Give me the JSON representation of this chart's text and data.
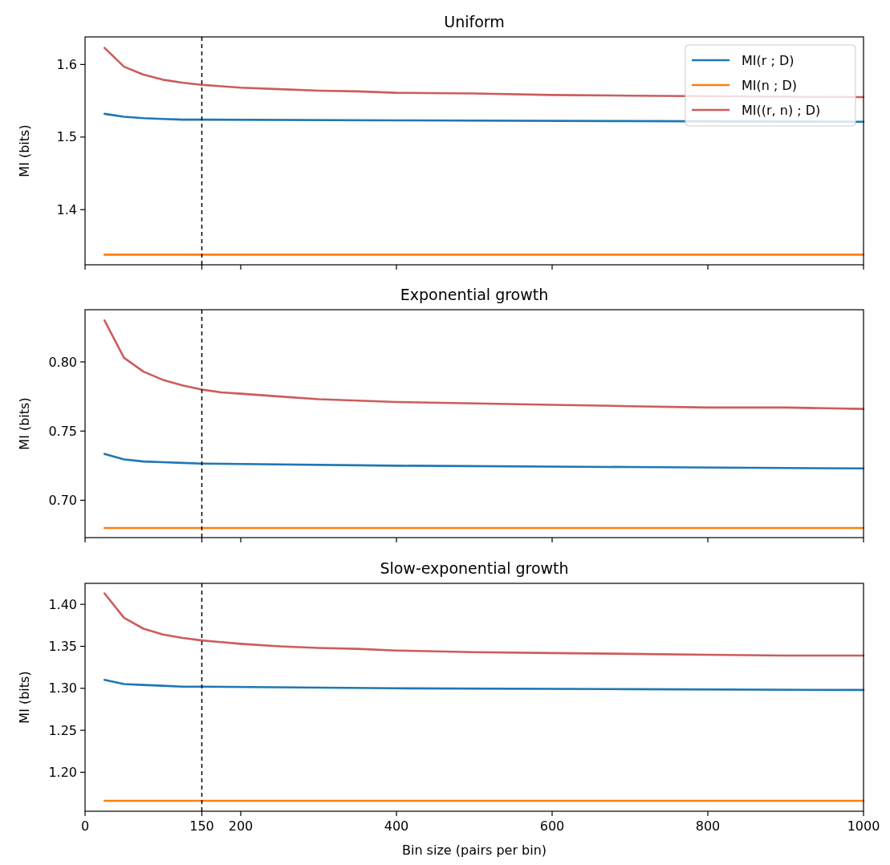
{
  "chart_data": [
    {
      "type": "line",
      "title": "Uniform",
      "ylabel": "MI (bits)",
      "xlim": [
        0,
        1000
      ],
      "xticks": [
        0,
        150,
        200,
        400,
        600,
        800,
        1000
      ],
      "ylim": [
        1.324,
        1.638
      ],
      "yticks": [
        1.4,
        1.5,
        1.6
      ],
      "tick_labels": "y",
      "legend": "top right",
      "grid": false,
      "ref_lines": [
        {
          "axis": "x",
          "value": 150,
          "color": "#000000",
          "line_style": "dashed"
        }
      ],
      "series": [
        {
          "name": "MI(r ; D)",
          "color": "#1f77b4",
          "x": [
            25,
            50,
            75,
            100,
            125,
            150,
            400,
            700,
            1000
          ],
          "values": [
            1.532,
            1.528,
            1.526,
            1.525,
            1.524,
            1.524,
            1.523,
            1.522,
            1.521
          ]
        },
        {
          "name": "MI(n ; D)",
          "color": "#ff7f0e",
          "x": [
            25,
            1000
          ],
          "values": [
            1.338,
            1.338
          ]
        },
        {
          "name": "MI((r, n) ; D)",
          "color": "#cd5c5c",
          "x": [
            25,
            50,
            75,
            100,
            125,
            150,
            175,
            200,
            250,
            300,
            350,
            400,
            500,
            600,
            700,
            1000
          ],
          "values": [
            1.623,
            1.597,
            1.586,
            1.579,
            1.575,
            1.572,
            1.57,
            1.568,
            1.566,
            1.564,
            1.563,
            1.561,
            1.56,
            1.558,
            1.557,
            1.555
          ]
        }
      ]
    },
    {
      "type": "line",
      "title": "Exponential growth",
      "ylabel": "MI (bits)",
      "xlim": [
        0,
        1000
      ],
      "xticks": [
        0,
        150,
        200,
        400,
        600,
        800,
        1000
      ],
      "ylim": [
        0.673,
        0.8377
      ],
      "yticks": [
        {
          "value": 0.7,
          "label": "0.70"
        },
        {
          "value": 0.75,
          "label": "0.75"
        },
        {
          "value": 0.8,
          "label": "0.80"
        }
      ],
      "tick_labels": "y",
      "grid": false,
      "ref_lines": [
        {
          "axis": "x",
          "value": 150,
          "color": "#000000",
          "line_style": "dashed"
        }
      ],
      "series": [
        {
          "color": "#1f77b4",
          "x": [
            25,
            50,
            75,
            100,
            125,
            150,
            400,
            700,
            1000
          ],
          "values": [
            0.7335,
            0.7295,
            0.728,
            0.7275,
            0.727,
            0.7265,
            0.725,
            0.724,
            0.723
          ]
        },
        {
          "color": "#ff7f0e",
          "x": [
            25,
            1000
          ],
          "values": [
            0.68,
            0.68
          ]
        },
        {
          "color": "#cd5c5c",
          "x": [
            25,
            50,
            75,
            100,
            125,
            150,
            175,
            200,
            250,
            300,
            350,
            400,
            500,
            600,
            700,
            800,
            900,
            1000
          ],
          "values": [
            0.83,
            0.803,
            0.793,
            0.787,
            0.783,
            0.78,
            0.778,
            0.777,
            0.775,
            0.773,
            0.772,
            0.771,
            0.77,
            0.769,
            0.768,
            0.767,
            0.767,
            0.766
          ]
        }
      ]
    },
    {
      "type": "line",
      "title": "Slow-exponential growth",
      "xlabel": "Bin size (pairs per bin)",
      "ylabel": "MI (bits)",
      "xlim": [
        0,
        1000
      ],
      "xticks": [
        0,
        150,
        200,
        400,
        600,
        800,
        1000
      ],
      "ylim": [
        1.1536,
        1.425
      ],
      "yticks": [
        {
          "value": 1.2,
          "label": "1.20"
        },
        {
          "value": 1.25,
          "label": "1.25"
        },
        {
          "value": 1.3,
          "label": "1.30"
        },
        {
          "value": 1.35,
          "label": "1.35"
        },
        {
          "value": 1.4,
          "label": "1.40"
        }
      ],
      "grid": false,
      "ref_lines": [
        {
          "axis": "x",
          "value": 150,
          "color": "#000000",
          "line_style": "dashed"
        }
      ],
      "series": [
        {
          "color": "#1f77b4",
          "x": [
            25,
            50,
            75,
            100,
            125,
            150,
            400,
            700,
            1000
          ],
          "values": [
            1.31,
            1.305,
            1.304,
            1.303,
            1.302,
            1.302,
            1.3,
            1.299,
            1.298
          ]
        },
        {
          "color": "#ff7f0e",
          "x": [
            25,
            1000
          ],
          "values": [
            1.166,
            1.166
          ]
        },
        {
          "color": "#cd5c5c",
          "x": [
            25,
            50,
            75,
            100,
            125,
            150,
            175,
            200,
            250,
            300,
            350,
            400,
            500,
            600,
            700,
            800,
            900,
            1000
          ],
          "values": [
            1.413,
            1.384,
            1.371,
            1.364,
            1.36,
            1.357,
            1.355,
            1.353,
            1.35,
            1.348,
            1.347,
            1.345,
            1.343,
            1.342,
            1.341,
            1.34,
            1.339,
            1.339
          ]
        }
      ]
    }
  ]
}
